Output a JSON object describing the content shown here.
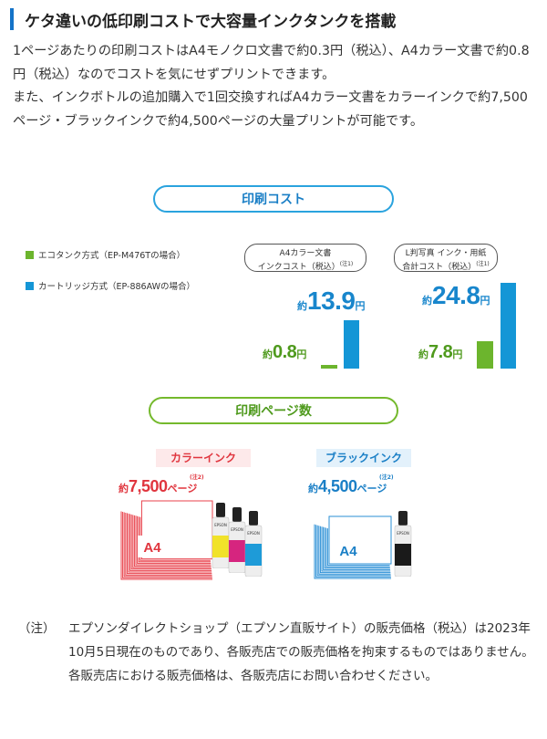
{
  "heading": "ケタ違いの低印刷コストで大容量インクタンクを搭載",
  "intro": {
    "p1": "1ページあたりの印刷コストはA4モノクロ文書で約0.3円（税込）、A4カラー文書で約0.8円（税込）なのでコストを気にせずプリントできます。",
    "p2": "また、インクボトルの追加購入で1回交換すればA4カラー文書をカラーインクで約7,500ページ・ブラックインクで約4,500ページの大量プリントが可能です。"
  },
  "cost_section": {
    "title": "印刷コスト",
    "legend": {
      "eco": "エコタンク方式（EP-M476Tの場合）",
      "cartridge": "カートリッジ方式（EP-886AWの場合）"
    },
    "chart_data": [
      {
        "type": "bar",
        "title_line1": "A4カラー文書",
        "title_line2": "インクコスト（税込）",
        "note": "(注1)",
        "categories": [
          "エコタンク方式",
          "カートリッジ方式"
        ],
        "values": [
          0.8,
          13.9
        ],
        "labels": [
          {
            "prefix": "約",
            "value": "0.8",
            "unit": "円"
          },
          {
            "prefix": "約",
            "value": "13.9",
            "unit": "円"
          }
        ],
        "colors": [
          "#6cb52d",
          "#1496d6"
        ],
        "ylim": [
          0,
          24.8
        ]
      },
      {
        "type": "bar",
        "title_line1": "L判写真 インク・用紙",
        "title_line2": "合計コスト（税込）",
        "note": "(注1)",
        "categories": [
          "エコタンク方式",
          "カートリッジ方式"
        ],
        "values": [
          7.8,
          24.8
        ],
        "labels": [
          {
            "prefix": "約",
            "value": "7.8",
            "unit": "円"
          },
          {
            "prefix": "約",
            "value": "24.8",
            "unit": "円"
          }
        ],
        "colors": [
          "#6cb52d",
          "#1496d6"
        ],
        "ylim": [
          0,
          24.8
        ]
      }
    ]
  },
  "pages_section": {
    "title": "印刷ページ数",
    "color": {
      "tag": "カラーインク",
      "prefix": "約",
      "value": "7,500",
      "unit": "ページ",
      "note": "(注2)",
      "paper_label": "A4",
      "accent": "#e0353e"
    },
    "black": {
      "tag": "ブラックインク",
      "prefix": "約",
      "value": "4,500",
      "unit": "ページ",
      "note": "(注2)",
      "paper_label": "A4",
      "accent": "#1a7fc6"
    },
    "bottle_brand": "EPSON"
  },
  "footnote": {
    "label": "（注）",
    "text": "エプソンダイレクトショップ（エプソン直販サイト）の販売価格（税込）は2023年10月5日現在のものであり、各販売店での販売価格を拘束するものではありません。各販売店における販売価格は、各販売店にお問い合わせください。"
  }
}
